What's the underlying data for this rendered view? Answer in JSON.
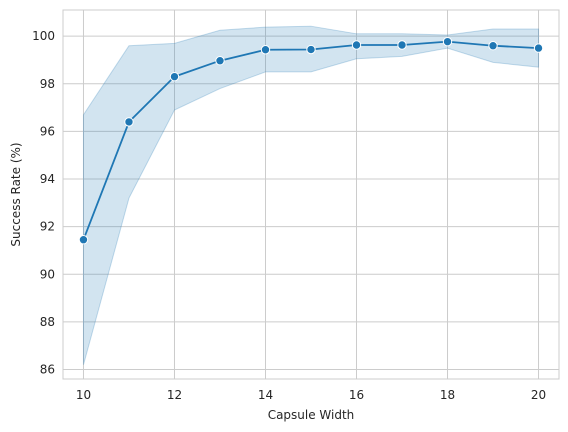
{
  "chart_data": {
    "type": "line",
    "title": "",
    "xlabel": "Capsule Width",
    "ylabel": "Success Rate (%)",
    "xlim": [
      9.55,
      20.45
    ],
    "ylim": [
      85.6,
      101.1
    ],
    "x_ticks": [
      10,
      12,
      14,
      16,
      18,
      20
    ],
    "y_ticks": [
      86,
      88,
      90,
      92,
      94,
      96,
      98,
      100
    ],
    "grid": true,
    "series": [
      {
        "name": "Success Rate",
        "color": "#1f77b4",
        "band_color": "#1f77b4",
        "x": [
          10,
          11,
          12,
          13,
          14,
          15,
          16,
          17,
          18,
          19,
          20
        ],
        "y": [
          91.45,
          96.4,
          98.3,
          98.97,
          99.43,
          99.44,
          99.63,
          99.63,
          99.77,
          99.6,
          99.5
        ],
        "ci_lower": [
          86.2,
          93.2,
          96.9,
          97.8,
          98.5,
          98.5,
          99.05,
          99.15,
          99.5,
          98.9,
          98.7
        ],
        "ci_upper": [
          96.7,
          99.6,
          99.7,
          100.25,
          100.38,
          100.42,
          100.1,
          100.1,
          100.05,
          100.3,
          100.3
        ]
      }
    ]
  }
}
